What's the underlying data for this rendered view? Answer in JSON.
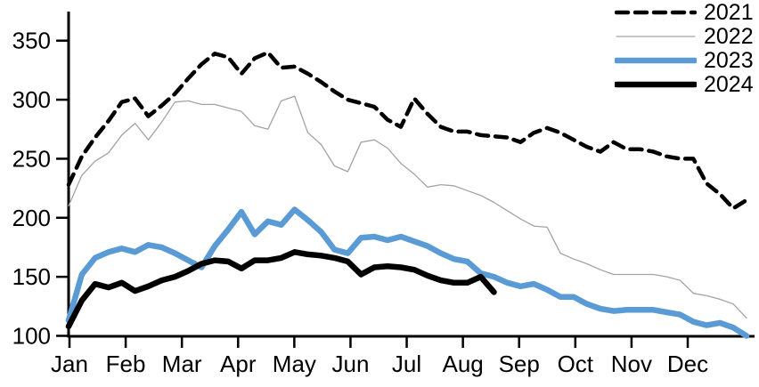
{
  "chart_data": {
    "type": "line",
    "title": "",
    "xlabel": "",
    "ylabel": "",
    "x_unit": "weekly",
    "x_tick_labels": [
      "Jan",
      "Feb",
      "Mar",
      "Apr",
      "May",
      "Jun",
      "Jul",
      "Aug",
      "Sep",
      "Oct",
      "Nov",
      "Dec"
    ],
    "y_ticks": [
      100,
      150,
      200,
      250,
      300,
      350
    ],
    "ylim": [
      100,
      350
    ],
    "grid": false,
    "legend_position": "top-right",
    "axis_color": "#000000",
    "series": [
      {
        "name": "2021",
        "color": "#000000",
        "line_style": "dashed",
        "line_width": 4.5,
        "values": [
          228,
          252,
          268,
          282,
          298,
          301,
          286,
          295,
          305,
          318,
          330,
          339,
          336,
          322,
          335,
          340,
          327,
          328,
          322,
          315,
          307,
          300,
          297,
          294,
          283,
          277,
          301,
          288,
          277,
          273,
          273,
          270,
          269,
          268,
          264,
          272,
          276,
          272,
          266,
          260,
          256,
          264,
          258,
          258,
          256,
          252,
          250,
          250,
          229,
          220,
          208,
          215
        ]
      },
      {
        "name": "2022",
        "color": "#a3a3a3",
        "line_style": "solid",
        "line_width": 1.3,
        "values": [
          210,
          236,
          248,
          255,
          270,
          280,
          266,
          281,
          298,
          299,
          296,
          296,
          293,
          290,
          278,
          275,
          299,
          303,
          272,
          262,
          244,
          239,
          264,
          266,
          259,
          246,
          237,
          226,
          228,
          227,
          223,
          219,
          213,
          206,
          199,
          193,
          192,
          170,
          165,
          161,
          156,
          152,
          152,
          152,
          152,
          150,
          147,
          136,
          134,
          131,
          127,
          115
        ]
      },
      {
        "name": "2023",
        "color": "#5b9bd5",
        "line_style": "solid",
        "line_width": 6.5,
        "values": [
          113,
          152,
          166,
          171,
          174,
          171,
          177,
          175,
          170,
          164,
          158,
          176,
          190,
          205,
          186,
          197,
          194,
          207,
          198,
          188,
          173,
          170,
          183,
          184,
          181,
          184,
          180,
          176,
          170,
          165,
          163,
          153,
          150,
          145,
          142,
          144,
          139,
          133,
          133,
          127,
          123,
          121,
          122,
          122,
          122,
          120,
          118,
          112,
          109,
          111,
          107,
          100
        ]
      },
      {
        "name": "2024",
        "color": "#000000",
        "line_style": "solid",
        "line_width": 6.5,
        "values": [
          108,
          130,
          144,
          141,
          145,
          138,
          142,
          147,
          150,
          155,
          161,
          164,
          163,
          157,
          164,
          164,
          166,
          171,
          169,
          168,
          166,
          163,
          152,
          158,
          159,
          158,
          156,
          151,
          147,
          145,
          145,
          150,
          137
        ]
      }
    ]
  }
}
